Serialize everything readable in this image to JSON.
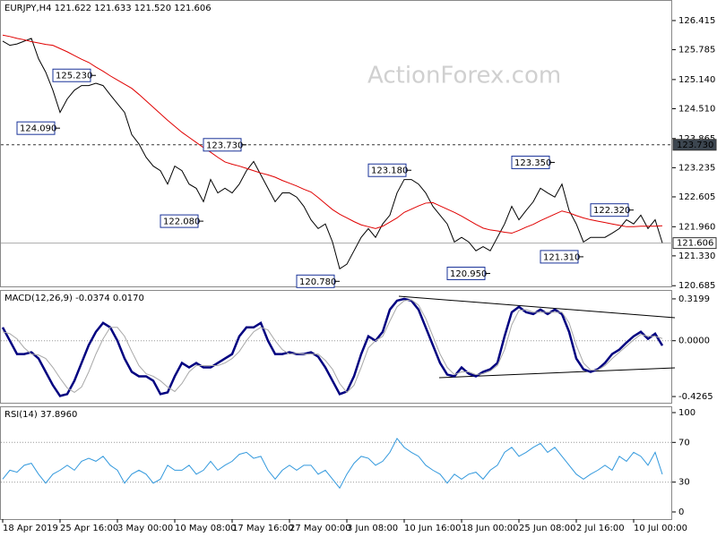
{
  "header": "EURJPY,H4  121.622 121.633 121.520 121.606",
  "watermark": "ActionForex.com",
  "chart_data": [
    {
      "type": "line",
      "ylim": [
        120.67,
        126.84
      ],
      "yticks": [
        126.415,
        125.785,
        {
          "value": 125.14,
          "label": "125.140"
        },
        {
          "value": 124.51,
          "label": "124.510"
        },
        123.865,
        123.235,
        122.605,
        {
          "value": 121.96,
          "label": "121.960"
        },
        {
          "value": 121.33,
          "label": "121.330"
        },
        120.685
      ],
      "series": [
        {
          "color": "#000000",
          "values": [
            125.97,
            125.88,
            125.91,
            125.97,
            126.03,
            125.59,
            125.3,
            124.91,
            124.43,
            124.72,
            124.91,
            125.01,
            125.01,
            125.06,
            125.01,
            124.81,
            124.62,
            124.43,
            123.95,
            123.75,
            123.46,
            123.27,
            123.17,
            122.88,
            123.27,
            123.17,
            122.88,
            122.79,
            122.5,
            122.98,
            122.69,
            122.79,
            122.69,
            122.88,
            123.17,
            123.37,
            123.08,
            122.79,
            122.5,
            122.69,
            122.69,
            122.6,
            122.4,
            122.11,
            121.92,
            122.02,
            121.63,
            121.05,
            121.15,
            121.44,
            121.73,
            121.92,
            121.73,
            122.02,
            122.21,
            122.69,
            122.98,
            122.98,
            122.88,
            122.69,
            122.4,
            122.21,
            122.02,
            121.63,
            121.73,
            121.63,
            121.44,
            121.53,
            121.44,
            121.73,
            122.02,
            122.4,
            122.11,
            122.31,
            122.5,
            122.79,
            122.69,
            122.6,
            122.88,
            122.31,
            122.02,
            121.63,
            121.73,
            121.73,
            121.73,
            121.82,
            121.92,
            122.11,
            122.02,
            122.21,
            121.92,
            122.11,
            121.61
          ]
        },
        {
          "color": "#e00000",
          "values": [
            126.1,
            126.07,
            126.03,
            126.0,
            125.96,
            125.93,
            125.9,
            125.88,
            125.81,
            125.74,
            125.66,
            125.58,
            125.51,
            125.41,
            125.32,
            125.22,
            125.13,
            125.04,
            124.95,
            124.82,
            124.68,
            124.54,
            124.4,
            124.26,
            124.13,
            124.0,
            123.89,
            123.78,
            123.67,
            123.57,
            123.46,
            123.36,
            123.31,
            123.27,
            123.22,
            123.17,
            123.12,
            123.08,
            123.03,
            122.96,
            122.9,
            122.84,
            122.77,
            122.71,
            122.59,
            122.46,
            122.33,
            122.23,
            122.15,
            122.07,
            122.0,
            121.96,
            121.92,
            121.97,
            122.06,
            122.15,
            122.27,
            122.34,
            122.41,
            122.47,
            122.48,
            122.41,
            122.34,
            122.27,
            122.19,
            122.1,
            122.01,
            121.93,
            121.89,
            121.87,
            121.84,
            121.82,
            121.88,
            121.95,
            122.01,
            122.09,
            122.16,
            122.23,
            122.3,
            122.26,
            122.2,
            122.15,
            122.11,
            122.08,
            122.05,
            122.02,
            121.99,
            121.96,
            121.96,
            121.97,
            121.97,
            121.97,
            121.98
          ]
        }
      ],
      "hlines": [
        {
          "value": 123.73,
          "label": "123.730",
          "dashed": true,
          "label_fill": "#3c4650",
          "label_color": "#ffffff"
        },
        {
          "value": 121.606,
          "label": "121.606",
          "dashed": false,
          "label_fill": "#ffffff",
          "label_color": "#000000"
        }
      ],
      "annotations": [
        {
          "label": "125.230",
          "value": 125.23,
          "index": 13
        },
        {
          "label": "124.090",
          "value": 124.09,
          "index": 8
        },
        {
          "label": "123.730",
          "value": 123.73,
          "index": 34
        },
        {
          "label": "122.080",
          "value": 122.08,
          "index": 28
        },
        {
          "label": "123.180",
          "value": 123.18,
          "index": 57
        },
        {
          "label": "120.780",
          "value": 120.78,
          "index": 47
        },
        {
          "label": "120.950",
          "value": 120.95,
          "index": 68
        },
        {
          "label": "123.350",
          "value": 123.35,
          "index": 77
        },
        {
          "label": "122.320",
          "value": 122.32,
          "index": 88
        },
        {
          "label": "121.310",
          "value": 121.31,
          "index": 81
        }
      ]
    },
    {
      "type": "line",
      "title": "MACD(12,26,9) -0.0374 0.0170",
      "ylim": [
        -0.474,
        0.381
      ],
      "yticks": [
        0.3199,
        {
          "value": 0,
          "label": "0.0000"
        },
        -0.4265
      ],
      "levels": [
        0
      ],
      "series": [
        {
          "color": "#000080",
          "width": 2.5,
          "values": [
            0.102,
            0,
            -0.102,
            -0.102,
            -0.088,
            -0.136,
            -0.238,
            -0.34,
            -0.422,
            -0.408,
            -0.306,
            -0.17,
            -0.034,
            0.068,
            0.136,
            0.102,
            0,
            -0.136,
            -0.238,
            -0.272,
            -0.272,
            -0.306,
            -0.408,
            -0.395,
            -0.272,
            -0.17,
            -0.204,
            -0.17,
            -0.204,
            -0.204,
            -0.17,
            -0.136,
            -0.102,
            0.034,
            0.102,
            0.102,
            0.136,
            0,
            -0.102,
            -0.102,
            -0.088,
            -0.102,
            -0.102,
            -0.088,
            -0.122,
            -0.204,
            -0.306,
            -0.408,
            -0.388,
            -0.272,
            -0.102,
            0.034,
            0,
            0.068,
            0.238,
            0.306,
            0.32,
            0.306,
            0.238,
            0.102,
            -0.034,
            -0.17,
            -0.259,
            -0.272,
            -0.204,
            -0.252,
            -0.272,
            -0.238,
            -0.218,
            -0.17,
            0.034,
            0.218,
            0.259,
            0.218,
            0.204,
            0.238,
            0.204,
            0.238,
            0.204,
            0.068,
            -0.136,
            -0.218,
            -0.238,
            -0.218,
            -0.17,
            -0.102,
            -0.068,
            -0.014,
            0.034,
            0.068,
            0.014,
            0.054,
            -0.0374
          ]
        },
        {
          "color": "#a8a8a8",
          "width": 1,
          "values": [
            0.068,
            0.054,
            0.014,
            -0.054,
            -0.102,
            -0.109,
            -0.136,
            -0.204,
            -0.286,
            -0.361,
            -0.395,
            -0.354,
            -0.238,
            -0.102,
            0.014,
            0.102,
            0.102,
            0.034,
            -0.082,
            -0.19,
            -0.252,
            -0.272,
            -0.306,
            -0.354,
            -0.388,
            -0.327,
            -0.238,
            -0.19,
            -0.19,
            -0.19,
            -0.19,
            -0.17,
            -0.136,
            -0.082,
            0,
            0.068,
            0.102,
            0.082,
            0,
            -0.068,
            -0.102,
            -0.095,
            -0.102,
            -0.102,
            -0.102,
            -0.15,
            -0.218,
            -0.327,
            -0.395,
            -0.34,
            -0.204,
            -0.054,
            0,
            0.034,
            0.15,
            0.259,
            0.306,
            0.313,
            0.272,
            0.17,
            0.034,
            -0.102,
            -0.204,
            -0.259,
            -0.238,
            -0.238,
            -0.259,
            -0.252,
            -0.231,
            -0.19,
            -0.068,
            0.122,
            0.231,
            0.238,
            0.218,
            0.218,
            0.218,
            0.218,
            0.218,
            0.136,
            -0.034,
            -0.17,
            -0.224,
            -0.224,
            -0.19,
            -0.136,
            -0.088,
            -0.041,
            0.007,
            0.048,
            0.034,
            0.034,
            0.017
          ]
        }
      ]
    },
    {
      "type": "line",
      "title": "RSI(14) 37.8960",
      "ylim": [
        -7.2,
        105.4
      ],
      "yticks": [
        100,
        70,
        30,
        0
      ],
      "levels": [
        70,
        30
      ],
      "categories": [
        "18 Apr 2019",
        null,
        null,
        null,
        null,
        null,
        null,
        null,
        "25 Apr 16:00",
        null,
        null,
        null,
        null,
        null,
        null,
        null,
        "3 May 00:00",
        null,
        null,
        null,
        null,
        null,
        null,
        null,
        "10 May 08:00",
        null,
        null,
        null,
        null,
        null,
        null,
        null,
        "17 May 16:00",
        null,
        null,
        null,
        null,
        null,
        null,
        null,
        "27 May 00:00",
        null,
        null,
        null,
        null,
        null,
        null,
        null,
        "3 Jun 08:00",
        null,
        null,
        null,
        null,
        null,
        null,
        null,
        "10 Jun 16:00",
        null,
        null,
        null,
        null,
        null,
        null,
        null,
        "18 Jun 00:00",
        null,
        null,
        null,
        null,
        null,
        null,
        null,
        "25 Jun 08:00",
        null,
        null,
        null,
        null,
        null,
        null,
        null,
        "2 Jul 16:00",
        null,
        null,
        null,
        null,
        null,
        null,
        null,
        "10 Jul 00:00",
        null,
        null,
        null,
        null
      ],
      "series": [
        {
          "color": "#3399dd",
          "width": 1,
          "values": [
            33,
            42,
            40,
            47,
            49,
            38,
            29,
            38,
            42,
            47,
            42,
            51,
            54,
            51,
            56,
            47,
            42,
            29,
            38,
            42,
            38,
            29,
            33,
            47,
            42,
            42,
            47,
            38,
            42,
            51,
            42,
            47,
            51,
            58,
            60,
            54,
            56,
            42,
            33,
            42,
            47,
            42,
            47,
            47,
            38,
            42,
            33,
            24,
            38,
            49,
            56,
            54,
            47,
            51,
            60,
            74,
            65,
            60,
            56,
            47,
            42,
            38,
            29,
            38,
            33,
            38,
            40,
            33,
            42,
            47,
            60,
            65,
            56,
            60,
            65,
            69,
            60,
            65,
            56,
            47,
            38,
            33,
            38,
            42,
            47,
            42,
            56,
            51,
            60,
            56,
            47,
            60,
            37.896
          ]
        }
      ]
    }
  ]
}
